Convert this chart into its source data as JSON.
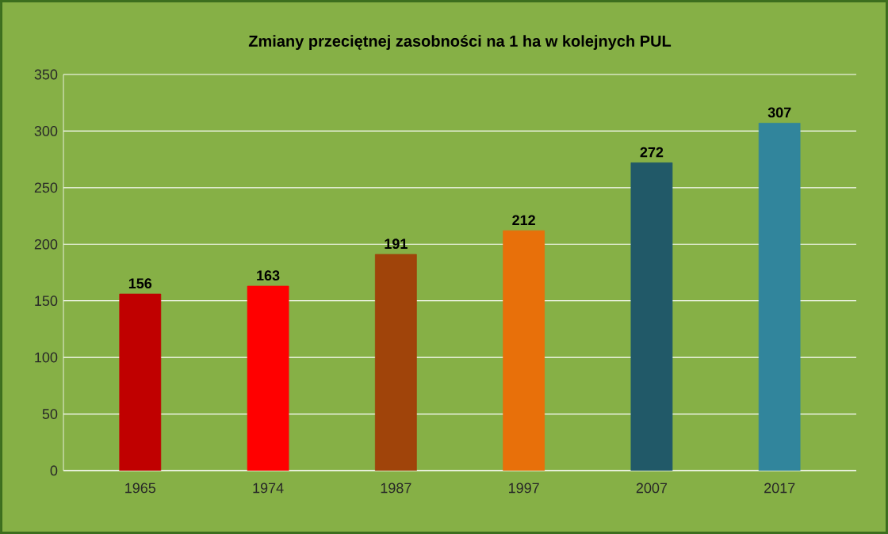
{
  "chart_data": {
    "type": "bar",
    "title": "Zmiany przeciętnej zasobności na 1 ha w kolejnych PUL",
    "categories": [
      "1965",
      "1974",
      "1987",
      "1997",
      "2007",
      "2017"
    ],
    "values": [
      156,
      163,
      191,
      212,
      272,
      307
    ],
    "colors": [
      "#c00000",
      "#ff0000",
      "#a0440a",
      "#e8700a",
      "#215968",
      "#31859c"
    ],
    "ylim": [
      0,
      350
    ],
    "yticks": [
      0,
      50,
      100,
      150,
      200,
      250,
      300,
      350
    ],
    "grid": "y",
    "data_labels": true
  }
}
